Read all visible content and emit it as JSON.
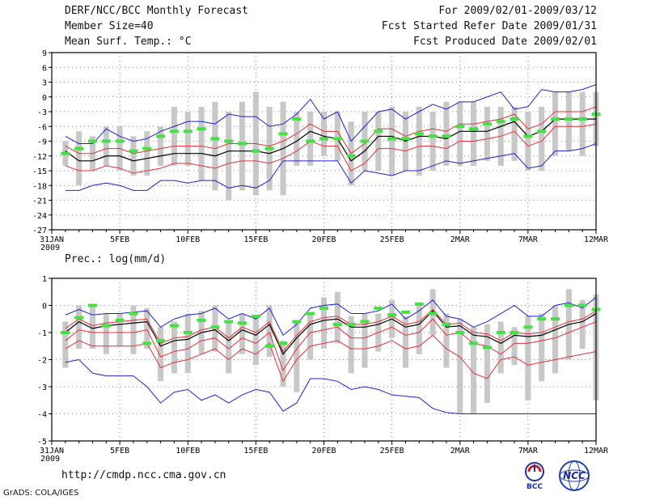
{
  "header": {
    "title": "DERF/NCC/BCC Monthly Forecast",
    "member": "Member Size=40",
    "variable": "Mean Surf. Temp.: °C",
    "period": "For 2009/02/01-2009/03/12",
    "start": "Fcst Started Refer Date 2009/01/31",
    "produced": "Fcst Produced Date 2009/02/01"
  },
  "footer": {
    "url": "http://cmdp.ncc.cma.gov.cn",
    "grads": "GrADS: COLA/IGES",
    "logo_bcc": "BCC",
    "logo_ncc": "NCC"
  },
  "colors": {
    "ensemble_mean": "#000000",
    "inner_spread": "#e8303a",
    "outer_spread": "#2020d0",
    "member_bar": "#c8c8c8",
    "observed": "#44e044"
  },
  "chart_data": [
    {
      "type": "line",
      "title": "Mean Surf. Temp.: °C",
      "xlabel": "",
      "ylabel": "",
      "x_tick_labels": [
        "31JAN",
        "5FEB",
        "10FEB",
        "15FEB",
        "20FEB",
        "25FEB",
        "2MAR",
        "7MAR",
        "12MAR"
      ],
      "x_year_label": "2009",
      "x_tick_days": [
        0,
        5,
        10,
        15,
        20,
        25,
        30,
        35,
        40
      ],
      "ylim": [
        -27,
        9
      ],
      "yticks": [
        9,
        6,
        3,
        0,
        -3,
        -6,
        -9,
        -12,
        -15,
        -18,
        -21,
        -24,
        -27
      ],
      "days": [
        1,
        2,
        3,
        4,
        5,
        6,
        7,
        8,
        9,
        10,
        11,
        12,
        13,
        14,
        15,
        16,
        17,
        18,
        19,
        20,
        21,
        22,
        23,
        24,
        25,
        26,
        27,
        28,
        29,
        30,
        31,
        32,
        33,
        34,
        35,
        36,
        37,
        38,
        39,
        40
      ],
      "series": [
        {
          "name": "ensemble-mean",
          "values": [
            -11,
            -13,
            -13,
            -12,
            -12,
            -13,
            -12.5,
            -12,
            -11.5,
            -11.5,
            -11.5,
            -12,
            -11,
            -11,
            -11,
            -11.5,
            -10.5,
            -9,
            -7,
            -8,
            -8.5,
            -13,
            -11,
            -8,
            -8,
            -9,
            -8,
            -8,
            -8.5,
            -7,
            -7,
            -7,
            -6,
            -5,
            -8,
            -7,
            -4.5,
            -4.5,
            -4.5,
            -4.5
          ]
        },
        {
          "name": "upper-inner",
          "values": [
            -10,
            -11.5,
            -11.5,
            -10.5,
            -10.5,
            -11.5,
            -11,
            -10.5,
            -10,
            -10,
            -10,
            -10.5,
            -9.5,
            -9.5,
            -9.5,
            -10,
            -9,
            -7.5,
            -5.5,
            -7,
            -7,
            -11.5,
            -9.5,
            -6.5,
            -6.5,
            -8,
            -7,
            -6.5,
            -7,
            -5.5,
            -5.5,
            -5,
            -4.5,
            -3.5,
            -6.5,
            -5.5,
            -3,
            -3,
            -3,
            -2
          ]
        },
        {
          "name": "lower-inner",
          "values": [
            -14,
            -15,
            -15,
            -14,
            -14.5,
            -15.5,
            -15,
            -14.5,
            -13.5,
            -13.5,
            -14,
            -14.5,
            -13.5,
            -13,
            -13,
            -13.5,
            -12.5,
            -11,
            -9,
            -10,
            -10,
            -15,
            -13.5,
            -10.5,
            -10.5,
            -11,
            -10,
            -10,
            -10.5,
            -9,
            -9,
            -8.5,
            -8,
            -7,
            -10,
            -9,
            -6,
            -6,
            -6,
            -5.5
          ]
        },
        {
          "name": "upper-outer",
          "values": [
            -8,
            -9.5,
            -9.5,
            -6.5,
            -8,
            -9,
            -8.5,
            -7,
            -6,
            -5,
            -5,
            -5.5,
            -3.5,
            -4,
            -4,
            -6,
            -5.5,
            -3.5,
            -0.5,
            -4.5,
            -3,
            -9,
            -6,
            -3,
            -2.5,
            -4.5,
            -3,
            -1.5,
            -2.5,
            -1,
            -1,
            0,
            1,
            -2.5,
            -2,
            1.5,
            1,
            1,
            1.5,
            2.5
          ]
        },
        {
          "name": "lower-outer",
          "values": [
            -19,
            -19,
            -18,
            -17.5,
            -18,
            -19,
            -19,
            -17,
            -17,
            -17.5,
            -17,
            -17,
            -18.5,
            -18,
            -18.5,
            -17,
            -13,
            -13,
            -13,
            -13,
            -13,
            -17.5,
            -15,
            -15.5,
            -16,
            -15,
            -15,
            -14,
            -13,
            -13.5,
            -13,
            -12.5,
            -12,
            -11.5,
            -14.5,
            -14,
            -11,
            -11,
            -10.5,
            -9.5
          ]
        }
      ],
      "member_bars": {
        "top": [
          -9,
          -7,
          -8,
          -6,
          -6,
          -8,
          -7,
          -6,
          -2,
          -3,
          -2,
          -1,
          -3,
          -1,
          1,
          -2,
          -1,
          -3,
          -3,
          -3,
          -3,
          -5,
          -3,
          -3,
          -2,
          -3,
          -2,
          -3,
          -1,
          -1,
          -1,
          -2,
          -2,
          -2,
          -3,
          -2,
          1,
          1,
          1,
          1
        ],
        "bottom": [
          -14,
          -18,
          -15,
          -14,
          -15,
          -16,
          -16,
          -14,
          -14,
          -14,
          -17,
          -19,
          -21,
          -19,
          -20,
          -19,
          -20,
          -14,
          -14,
          -12,
          -13,
          -18,
          -15,
          -15,
          -16,
          -15,
          -16,
          -15,
          -14,
          -14,
          -14,
          -13,
          -14,
          -13,
          -15,
          -15,
          -12,
          -11,
          -12,
          -10
        ]
      },
      "observed": [
        -11.5,
        -10.5,
        -9,
        -9,
        -9,
        -11,
        -10.5,
        -8,
        -7,
        -7,
        -6.5,
        -8.5,
        -9,
        -9.5,
        -11,
        -10.5,
        -7.5,
        -4.5,
        -9,
        -8.5,
        -8.5,
        -12,
        -9,
        -7,
        -8.5,
        -8.5,
        -7.5,
        -8,
        -8,
        -6,
        -6.5,
        -5.5,
        -5,
        -4.5,
        -8,
        -7,
        -4.5,
        -4.5,
        -4.5,
        -3.5
      ]
    },
    {
      "type": "line",
      "title": "Prec.: log(mm/d)",
      "xlabel": "",
      "ylabel": "",
      "x_tick_labels": [
        "31JAN",
        "5FEB",
        "10FEB",
        "15FEB",
        "20FEB",
        "25FEB",
        "2MAR",
        "7MAR",
        "12MAR"
      ],
      "x_year_label": "2009",
      "x_tick_days": [
        0,
        5,
        10,
        15,
        20,
        25,
        30,
        35,
        40
      ],
      "ylim": [
        -5,
        1
      ],
      "yticks": [
        1,
        0,
        -1,
        -2,
        -3,
        -4,
        -5
      ],
      "days": [
        1,
        2,
        3,
        4,
        5,
        6,
        7,
        8,
        9,
        10,
        11,
        12,
        13,
        14,
        15,
        16,
        17,
        18,
        19,
        20,
        21,
        22,
        23,
        24,
        25,
        26,
        27,
        28,
        29,
        30,
        31,
        32,
        33,
        34,
        35,
        36,
        37,
        38,
        39,
        40
      ],
      "series": [
        {
          "name": "ensemble-mean",
          "values": [
            -1,
            -0.6,
            -0.85,
            -0.75,
            -0.7,
            -0.65,
            -0.6,
            -1.5,
            -1.3,
            -1.25,
            -1.0,
            -0.9,
            -1.3,
            -0.9,
            -1.1,
            -0.7,
            -1.8,
            -1.2,
            -0.7,
            -0.55,
            -0.5,
            -0.8,
            -0.8,
            -0.7,
            -0.5,
            -0.8,
            -0.7,
            -0.2,
            -0.8,
            -0.75,
            -1.1,
            -1.15,
            -1.4,
            -1.1,
            -1.15,
            -1.1,
            -0.9,
            -0.7,
            -0.6,
            -0.3
          ]
        },
        {
          "name": "upper-inner",
          "values": [
            -0.85,
            -0.5,
            -0.75,
            -0.65,
            -0.6,
            -0.55,
            -0.5,
            -1.4,
            -1.2,
            -1.15,
            -0.9,
            -0.8,
            -1.2,
            -0.8,
            -1.0,
            -0.6,
            -1.7,
            -1.1,
            -0.6,
            -0.45,
            -0.4,
            -0.7,
            -0.7,
            -0.6,
            -0.4,
            -0.7,
            -0.6,
            -0.15,
            -0.7,
            -0.65,
            -1.0,
            -1.05,
            -1.3,
            -1.0,
            -1.05,
            -1.0,
            -0.8,
            -0.6,
            -0.5,
            -0.2
          ]
        },
        {
          "name": "lower-inner",
          "values": [
            -1.3,
            -0.9,
            -1.0,
            -1.0,
            -1.0,
            -1.0,
            -0.9,
            -1.9,
            -1.7,
            -1.6,
            -1.3,
            -1.2,
            -1.6,
            -1.2,
            -1.4,
            -1.0,
            -2.4,
            -1.6,
            -1.0,
            -0.9,
            -0.8,
            -1.2,
            -1.2,
            -1.0,
            -0.8,
            -1.1,
            -1.0,
            -0.5,
            -1.1,
            -1.0,
            -1.4,
            -1.5,
            -1.8,
            -1.4,
            -1.4,
            -1.3,
            -1.2,
            -1.0,
            -0.8,
            -0.6
          ]
        },
        {
          "name": "upper-outer",
          "values": [
            -0.35,
            -0.15,
            -0.35,
            -0.3,
            -0.3,
            -0.25,
            -0.2,
            -0.8,
            -0.5,
            -0.35,
            -0.3,
            -0.1,
            -0.5,
            -0.3,
            -0.5,
            -0.1,
            -1.1,
            -0.7,
            -0.1,
            0.0,
            0.05,
            -0.3,
            -0.3,
            -0.2,
            0.05,
            -0.5,
            -0.2,
            0.2,
            -0.4,
            -0.5,
            -0.8,
            -0.6,
            -0.3,
            0.0,
            -0.4,
            -0.4,
            0.0,
            0.1,
            -0.1,
            0.3
          ]
        },
        {
          "name": "lower-outer",
          "values": [
            -2.1,
            -2.0,
            -2.5,
            -2.6,
            -2.6,
            -2.6,
            -3.0,
            -3.6,
            -3.2,
            -3.1,
            -3.5,
            -3.3,
            -3.6,
            -3.3,
            -3.1,
            -3.2,
            -3.9,
            -3.6,
            -2.7,
            -2.7,
            -2.8,
            -3.1,
            -3.0,
            -3.1,
            -3.3,
            -3.35,
            -3.4,
            -3.8,
            -3.95,
            -4.0,
            -4.0,
            -4.0,
            -4.0,
            -4.0,
            -4.0,
            -4.0,
            -4.0,
            -4.0,
            -4.0,
            -4.0
          ]
        },
        {
          "name": "lower-red",
          "values": [
            -1.6,
            -1.3,
            -1.5,
            -1.5,
            -1.5,
            -1.5,
            -1.4,
            -2.3,
            -2.1,
            -2.0,
            -1.8,
            -1.6,
            -2.0,
            -1.6,
            -1.8,
            -1.4,
            -2.8,
            -2.0,
            -1.5,
            -1.4,
            -1.3,
            -1.6,
            -1.6,
            -1.5,
            -1.3,
            -1.6,
            -1.5,
            -1.1,
            -1.6,
            -1.9,
            -2.5,
            -2.7,
            -2.0,
            -1.9,
            -2.2,
            -2.1,
            -2.0,
            -1.9,
            -1.8,
            -1.7
          ]
        }
      ],
      "member_bars": {
        "top": [
          -0.6,
          0.0,
          0.0,
          -0.3,
          -0.3,
          0.0,
          -0.1,
          -0.8,
          -0.6,
          -0.3,
          -0.2,
          0.0,
          -0.6,
          -0.3,
          -0.4,
          0.0,
          -1.3,
          -0.6,
          -0.3,
          0.3,
          0.5,
          -0.4,
          -0.3,
          -0.3,
          0.2,
          -0.4,
          0.0,
          0.6,
          -0.3,
          -0.5,
          -0.8,
          -0.7,
          -0.6,
          -0.8,
          -0.4,
          -0.3,
          0.0,
          0.6,
          0.2,
          0.4
        ],
        "bottom": [
          -2.3,
          -1.6,
          -1.6,
          -1.8,
          -1.5,
          -1.8,
          -1.6,
          -2.8,
          -2.5,
          -2.5,
          -1.8,
          -1.7,
          -2.5,
          -1.8,
          -2.2,
          -1.9,
          -3.0,
          -3.2,
          -2.0,
          -1.6,
          -1.4,
          -2.5,
          -2.3,
          -1.7,
          -1.2,
          -2.3,
          -1.8,
          -1.1,
          -2.3,
          -4.0,
          -4.0,
          -3.6,
          -2.5,
          -2.2,
          -3.5,
          -2.8,
          -2.5,
          -2.0,
          -1.6,
          -3.5
        ]
      },
      "observed": [
        -1,
        -0.45,
        0,
        -0.75,
        -0.55,
        -0.3,
        -1.4,
        -1.3,
        -0.75,
        -1.0,
        -0.55,
        -0.8,
        -0.6,
        -0.65,
        -0.4,
        -1.5,
        -1.4,
        -0.6,
        -0.3,
        -0.1,
        -0.7,
        -0.7,
        -0.6,
        -0.1,
        -0.35,
        -0.25,
        0.05,
        -0.3,
        -0.7,
        -1.0,
        -1.4,
        -1.55,
        -1.0,
        -1.0,
        -0.8,
        -0.5,
        -0.5,
        0,
        0,
        -0.15
      ]
    }
  ]
}
